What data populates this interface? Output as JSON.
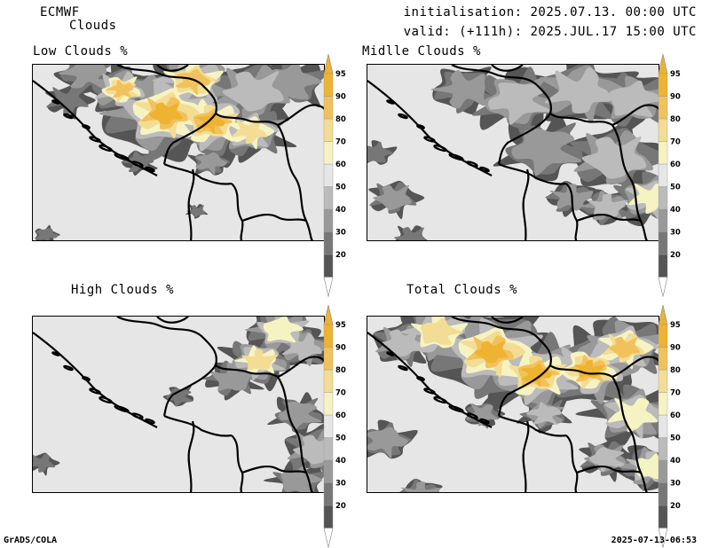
{
  "header": {
    "model": "ECMWF",
    "product": "Clouds",
    "init_line": "initialisation: 2025.07.13. 00:00 UTC",
    "valid_line": "valid: (+111h): 2025.JUL.17 15:00 UTC"
  },
  "panels": [
    {
      "title": "Low Clouds %"
    },
    {
      "title": "Midlle Clouds %"
    },
    {
      "title": "High Clouds %"
    },
    {
      "title": "Total Clouds %"
    }
  ],
  "colorbar": {
    "levels": [
      "20",
      "30",
      "40",
      "50",
      "60",
      "70",
      "80",
      "90",
      "95"
    ],
    "colors": [
      "#555555",
      "#777777",
      "#999999",
      "#bbbbbb",
      "#e6e6e6",
      "#f6f3c3",
      "#f3dd94",
      "#f1c25c",
      "#eeb331"
    ],
    "under_color": "#ffffff",
    "over_color": "#eeb331"
  },
  "footer": {
    "left": "GrADS/COLA",
    "right": "2025-07-13-06:53"
  }
}
